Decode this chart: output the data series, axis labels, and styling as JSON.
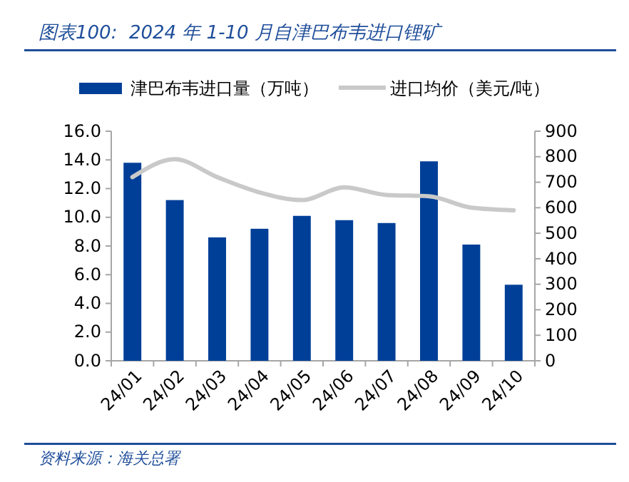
{
  "chart_data": {
    "type": "bar",
    "title": "图表100:  2024 年 1-10 月自津巴布韦进口锂矿",
    "annotations": [
      "资料来源：海关总署"
    ],
    "categories": [
      "24/01",
      "24/02",
      "24/03",
      "24/04",
      "24/05",
      "24/06",
      "24/07",
      "24/08",
      "24/09",
      "24/10"
    ],
    "series": [
      {
        "name": "津巴布韦进口量（万吨）",
        "color": "#003f98",
        "values": [
          13.8,
          11.2,
          8.6,
          9.2,
          10.1,
          9.8,
          9.6,
          13.9,
          8.1,
          5.3
        ]
      },
      {
        "name": "进口均价（美元/吨）",
        "type": "line",
        "axis": "y2",
        "color": "#c9c9c9",
        "values": [
          720,
          790,
          720,
          660,
          630,
          680,
          650,
          645,
          600,
          590
        ]
      }
    ],
    "ylim": [
      0,
      16
    ],
    "yticks": [
      {
        "value": 0,
        "label": "0.0"
      },
      {
        "value": 2,
        "label": "2.0"
      },
      {
        "value": 4,
        "label": "4.0"
      },
      {
        "value": 6,
        "label": "6.0"
      },
      {
        "value": 8,
        "label": "8.0"
      },
      {
        "value": 10,
        "label": "10.0"
      },
      {
        "value": 12,
        "label": "12.0"
      },
      {
        "value": 14,
        "label": "14.0"
      },
      {
        "value": 16,
        "label": "16.0"
      }
    ],
    "y2lim": [
      0,
      900
    ],
    "y2ticks": [
      0,
      100,
      200,
      300,
      400,
      500,
      600,
      700,
      800,
      900
    ],
    "legend": "top"
  }
}
